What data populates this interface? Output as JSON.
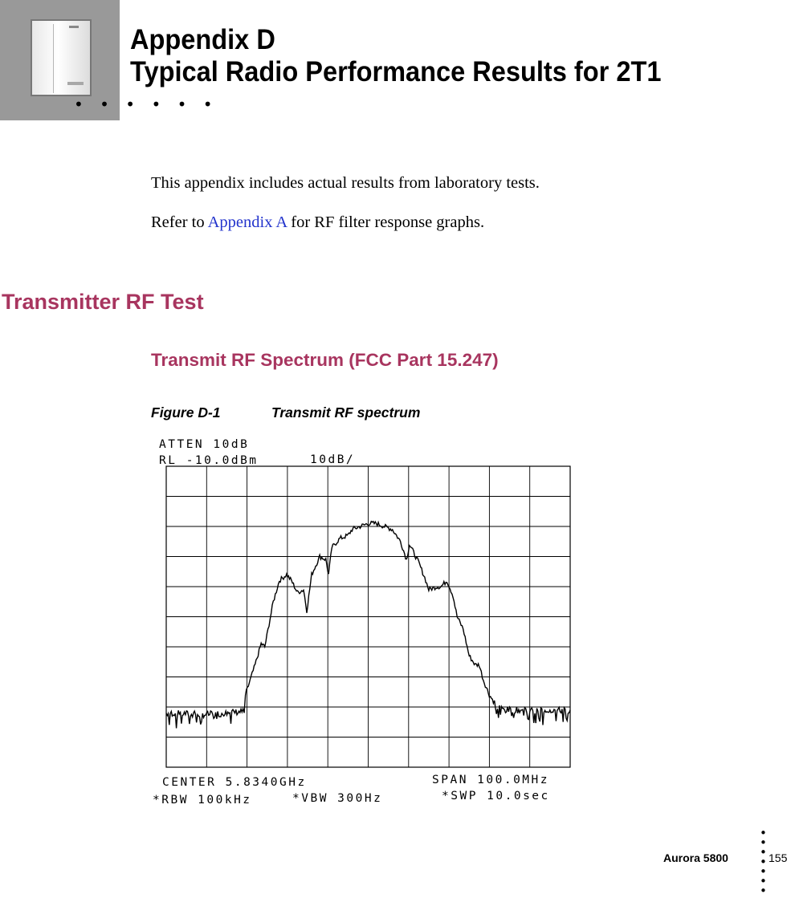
{
  "header": {
    "title_line1": "Appendix D",
    "title_line2": "Typical Radio Performance Results for 2T1",
    "dots": "• • • • • •"
  },
  "intro": {
    "text": "This appendix includes actual results from laboratory tests.",
    "refer_prefix": "Refer to ",
    "refer_link": "Appendix A",
    "refer_suffix": " for RF filter response graphs."
  },
  "section": {
    "title": "Transmitter RF Test",
    "subsection_title": "Transmit RF Spectrum (FCC Part 15.247)"
  },
  "figure": {
    "number": "Figure D-1",
    "caption": "Transmit RF spectrum",
    "analyzer": {
      "atten": "ATTEN 10dB",
      "ref_level": "RL -10.0dBm",
      "scale": "10dB/",
      "center": "CENTER 5.8340GHz",
      "span": "SPAN 100.0MHz",
      "rbw": "*RBW 100kHz",
      "vbw": "*VBW 300Hz",
      "sweep": "*SWP 10.0sec"
    },
    "trace_color": "#000000"
  },
  "chart_data": {
    "type": "line",
    "title": "",
    "xlabel": "",
    "ylabel": "",
    "x_unit": "MHz",
    "y_unit": "dBm",
    "xlim": [
      5784.0,
      5884.0
    ],
    "ylim": [
      -110.0,
      -10.0
    ],
    "grid": true,
    "series": [
      {
        "x": [
          5784,
          5794,
          5803,
          5803.6,
          5806,
          5807.5,
          5808.4,
          5810.5,
          5812,
          5813.8,
          5815,
          5816.5,
          5818,
          5818.8,
          5820,
          5822,
          5823.5,
          5824.2,
          5825,
          5827,
          5829,
          5830,
          5832,
          5834,
          5836,
          5838,
          5840,
          5842,
          5843.5,
          5844.2,
          5845,
          5846.5,
          5848,
          5849,
          5851,
          5852,
          5853.5,
          5855,
          5856,
          5857.5,
          5859,
          5860.5,
          5861.5,
          5862.5,
          5864,
          5866,
          5868,
          5875,
          5884
        ],
        "y": [
          -92,
          -92.5,
          -91.5,
          -86,
          -76,
          -69,
          -70,
          -55,
          -48,
          -46,
          -48,
          -52,
          -51,
          -58,
          -46,
          -40,
          -41,
          -46,
          -37,
          -34,
          -33,
          -31,
          -30,
          -29,
          -29,
          -30,
          -31,
          -35,
          -41,
          -36,
          -38,
          -42,
          -47,
          -51,
          -50,
          -50,
          -48,
          -53,
          -60,
          -64,
          -73,
          -76,
          -76,
          -81,
          -86,
          -90,
          -91,
          -91,
          -91
        ]
      }
    ]
  },
  "footer": {
    "product": "Aurora 5800",
    "page_number": "155",
    "dots": "•\n•\n•\n•\n•\n•\n•"
  }
}
